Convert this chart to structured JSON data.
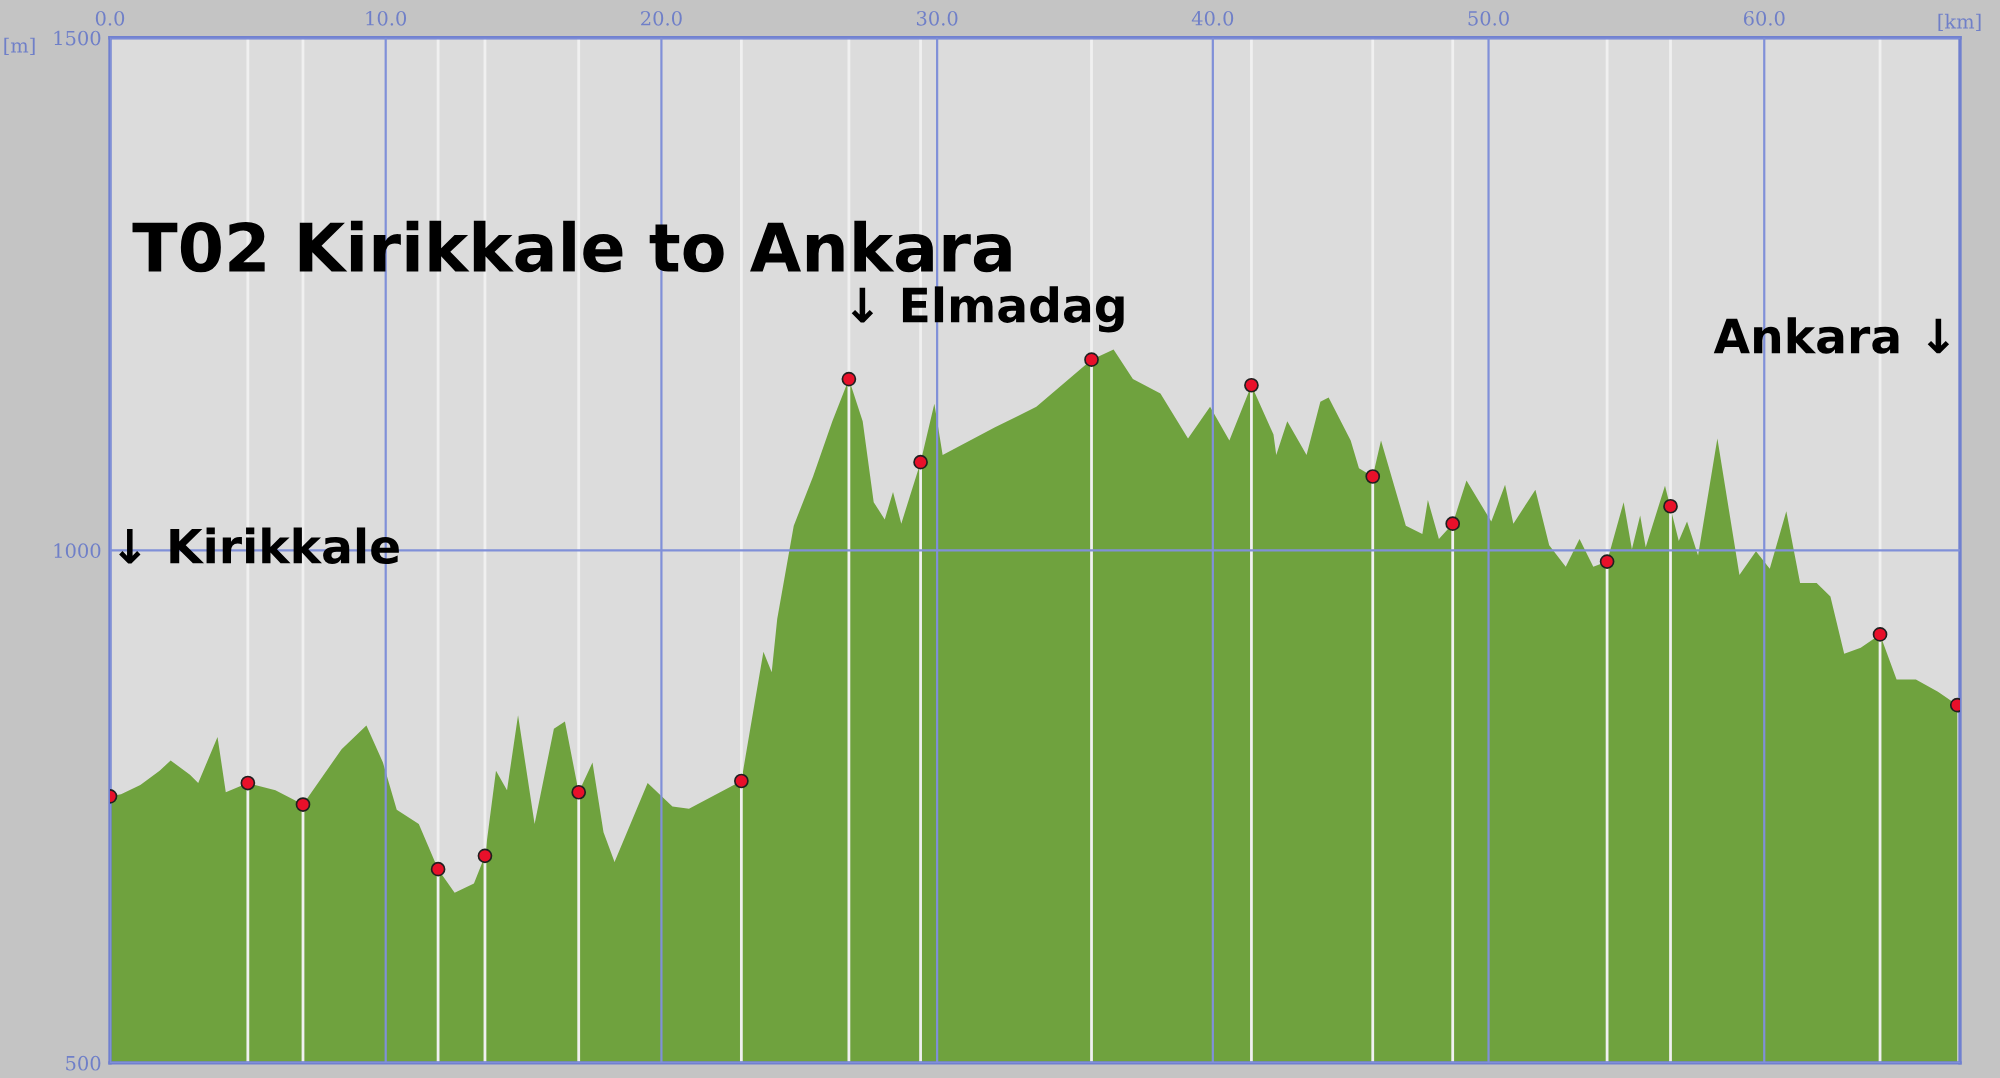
{
  "chart_data": {
    "type": "area",
    "title": "T02 Kirikkale to Ankara",
    "xlabel": "[km]",
    "ylabel": "[m]",
    "xlim": [
      0,
      67.1
    ],
    "ylim": [
      500,
      1500
    ],
    "xticks": [
      {
        "value": 0,
        "label": "0.0"
      },
      {
        "value": 10,
        "label": "10.0"
      },
      {
        "value": 20,
        "label": "20.0"
      },
      {
        "value": 30,
        "label": "30.0"
      },
      {
        "value": 40,
        "label": "40.0"
      },
      {
        "value": 50,
        "label": "50.0"
      },
      {
        "value": 60,
        "label": "60.0"
      }
    ],
    "yticks": [
      500,
      1000,
      1500
    ],
    "grid": true,
    "series": [
      {
        "color": "#6fa23e",
        "x": [
          0,
          0.4,
          1.1,
          1.8,
          2.2,
          2.9,
          3.2,
          3.9,
          4.2,
          5.0,
          6.0,
          7.0,
          8.4,
          9.3,
          9.9,
          10.4,
          11.2,
          11.9,
          12.5,
          13.2,
          13.6,
          14.0,
          14.4,
          14.8,
          15.4,
          16.1,
          16.5,
          17.0,
          17.5,
          17.9,
          18.3,
          19.5,
          20.4,
          21.0,
          22.9,
          23.4,
          23.7,
          24.0,
          24.2,
          24.8,
          25.5,
          26.2,
          26.8,
          27.3,
          27.7,
          28.1,
          28.4,
          28.7,
          29.4,
          29.9,
          30.2,
          32.1,
          33.6,
          35.6,
          36.4,
          37.1,
          38.1,
          39.1,
          39.9,
          40.6,
          41.4,
          42.2,
          42.3,
          42.7,
          43.4,
          43.9,
          44.2,
          45.0,
          45.3,
          45.8,
          46.1,
          47.0,
          47.6,
          47.8,
          48.2,
          48.7,
          49.2,
          50.1,
          50.6,
          50.9,
          51.7,
          52.2,
          52.8,
          53.3,
          53.8,
          54.3,
          54.9,
          55.2,
          55.5,
          55.7,
          56.4,
          56.9,
          57.2,
          57.6,
          58.3,
          59.1,
          59.7,
          60.2,
          60.8,
          61.3,
          61.9,
          62.4,
          62.9,
          63.5,
          64.2,
          64.8,
          65.5,
          66.3,
          67.0
        ],
        "values": [
          760,
          762,
          771,
          785,
          795,
          781,
          773,
          818,
          764,
          773,
          766,
          752,
          806,
          829,
          793,
          747,
          733,
          689,
          666,
          675,
          702,
          785,
          766,
          839,
          733,
          826,
          833,
          764,
          793,
          725,
          696,
          773,
          750,
          748,
          775,
          854,
          901,
          881,
          933,
          1024,
          1072,
          1126,
          1167,
          1126,
          1047,
          1030,
          1057,
          1026,
          1086,
          1143,
          1093,
          1120,
          1140,
          1186,
          1196,
          1167,
          1153,
          1109,
          1140,
          1107,
          1161,
          1113,
          1093,
          1126,
          1093,
          1145,
          1149,
          1107,
          1080,
          1072,
          1107,
          1024,
          1016,
          1049,
          1011,
          1026,
          1068,
          1028,
          1064,
          1026,
          1059,
          1005,
          984,
          1011,
          984,
          989,
          1047,
          1001,
          1034,
          1003,
          1063,
          1009,
          1028,
          995,
          1109,
          976,
          999,
          982,
          1038,
          968,
          968,
          955,
          899,
          905,
          918,
          874,
          874,
          862,
          849
        ]
      },
      {
        "type": "scatter",
        "color": "#e8102a",
        "marker": "circle",
        "x": [
          0,
          5.0,
          7.0,
          11.9,
          13.6,
          17.0,
          22.9,
          26.8,
          29.4,
          35.6,
          41.4,
          45.8,
          48.7,
          54.3,
          56.6,
          64.2,
          67.0
        ],
        "values": [
          760,
          773,
          752,
          689,
          702,
          764,
          775,
          1167,
          1086,
          1186,
          1161,
          1072,
          1026,
          989,
          1043,
          918,
          849
        ]
      }
    ],
    "ref_lines": [
      {
        "axis": "x",
        "value": 5.0,
        "color": "#f0f0f0"
      },
      {
        "axis": "x",
        "value": 7.0,
        "color": "#f0f0f0"
      },
      {
        "axis": "x",
        "value": 11.9,
        "color": "#f0f0f0"
      },
      {
        "axis": "x",
        "value": 13.6,
        "color": "#f0f0f0"
      },
      {
        "axis": "x",
        "value": 17.0,
        "color": "#f0f0f0"
      },
      {
        "axis": "x",
        "value": 22.9,
        "color": "#f0f0f0"
      },
      {
        "axis": "x",
        "value": 26.8,
        "color": "#f0f0f0"
      },
      {
        "axis": "x",
        "value": 29.4,
        "color": "#f0f0f0"
      },
      {
        "axis": "x",
        "value": 35.6,
        "color": "#f0f0f0"
      },
      {
        "axis": "x",
        "value": 41.4,
        "color": "#f0f0f0"
      },
      {
        "axis": "x",
        "value": 45.8,
        "color": "#f0f0f0"
      },
      {
        "axis": "x",
        "value": 48.7,
        "color": "#f0f0f0"
      },
      {
        "axis": "x",
        "value": 54.3,
        "color": "#f0f0f0"
      },
      {
        "axis": "x",
        "value": 56.6,
        "color": "#f0f0f0"
      },
      {
        "axis": "x",
        "value": 64.2,
        "color": "#f0f0f0"
      }
    ],
    "annotations": [
      "↓ Kirikkale",
      "↓ Elmadag",
      "Ankara ↓"
    ]
  }
}
